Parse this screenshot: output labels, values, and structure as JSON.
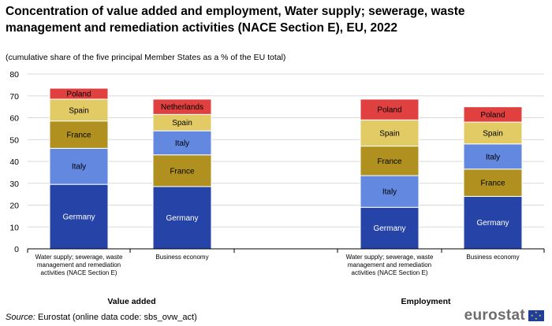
{
  "title": "Concentration of value added and employment, Water supply; sewerage, waste management and remediation activities (NACE Section E), EU, 2022",
  "subtitle": "(cumulative  share of the five principal Member States as a % of the EU total)",
  "source": {
    "label": "Source:",
    "text": " Eurostat (online data code: sbs_ovw_act)"
  },
  "logo": {
    "text": "eurostat",
    "flag": "eu-flag-icon"
  },
  "colors": {
    "Germany": "#2644a7",
    "Italy": "#6388e0",
    "France": "#b09120",
    "Spain": "#e2cb65",
    "Poland": "#e04040",
    "Netherlands": "#e04040",
    "grid": "#d9d9d9",
    "axis": "#000000"
  },
  "chart_data": {
    "type": "bar",
    "stacked": true,
    "ylim": [
      0,
      80
    ],
    "yticks": [
      0,
      10,
      20,
      30,
      40,
      50,
      60,
      70,
      80
    ],
    "grid": true,
    "groups": [
      {
        "label": "Value added",
        "bars": [
          {
            "category": "Water supply; sewerage, waste management and remediation activities (NACE Section E)",
            "category_lines": [
              "Water supply; sewerage, waste",
              "management and remediation",
              "activities (NACE Section E)"
            ],
            "segments": [
              {
                "name": "Germany",
                "value": 29.5
              },
              {
                "name": "Italy",
                "value": 16.5
              },
              {
                "name": "France",
                "value": 12.5
              },
              {
                "name": "Spain",
                "value": 10.0
              },
              {
                "name": "Poland",
                "value": 5.0
              }
            ]
          },
          {
            "category": "Business economy",
            "category_lines": [
              "Business economy"
            ],
            "segments": [
              {
                "name": "Germany",
                "value": 28.5
              },
              {
                "name": "France",
                "value": 14.5
              },
              {
                "name": "Italy",
                "value": 11.0
              },
              {
                "name": "Spain",
                "value": 7.5
              },
              {
                "name": "Netherlands",
                "value": 7.0
              }
            ]
          }
        ]
      },
      {
        "label": "Employment",
        "bars": [
          {
            "category": "Water supply; sewerage, waste management and remediation activities (NACE Section E)",
            "category_lines": [
              "Water supply; sewerage, waste",
              "management and remediation",
              "activities (NACE Section E)"
            ],
            "segments": [
              {
                "name": "Germany",
                "value": 19.0
              },
              {
                "name": "Italy",
                "value": 14.5
              },
              {
                "name": "France",
                "value": 13.5
              },
              {
                "name": "Spain",
                "value": 12.0
              },
              {
                "name": "Poland",
                "value": 9.5
              }
            ]
          },
          {
            "category": "Business economy",
            "category_lines": [
              "Business economy"
            ],
            "segments": [
              {
                "name": "Germany",
                "value": 24.0
              },
              {
                "name": "France",
                "value": 12.5
              },
              {
                "name": "Italy",
                "value": 11.5
              },
              {
                "name": "Spain",
                "value": 10.0
              },
              {
                "name": "Poland",
                "value": 7.0
              }
            ]
          }
        ]
      }
    ]
  }
}
